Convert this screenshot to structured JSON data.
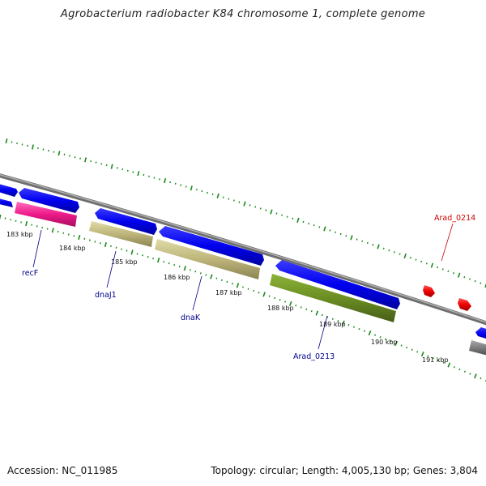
{
  "title": "Agrobacterium radiobacter K84 chromosome 1, complete genome",
  "footer": {
    "accession": "Accession: NC_011985",
    "summary": "Topology: circular; Length: 4,005,130 bp; Genes: 3,804"
  },
  "colors": {
    "backbone": "#8a8a8a",
    "tick": "#1a8a1a",
    "cds_forward": "#0000ee",
    "recF": "#ee1a8a",
    "dnaJ1": "#bdb57a",
    "dnaK": "#bdb57a",
    "Arad_0213": "#6b8e23",
    "Arad_0214": "#ee0000",
    "gray_gene": "#777777",
    "label_blue": "#00008b",
    "label_red": "#cc0000"
  },
  "ticks": [
    {
      "label": "183 kbp"
    },
    {
      "label": "184 kbp"
    },
    {
      "label": "185 kbp"
    },
    {
      "label": "186 kbp"
    },
    {
      "label": "187 kbp"
    },
    {
      "label": "188 kbp"
    },
    {
      "label": "189 kbp"
    },
    {
      "label": "190 kbp"
    },
    {
      "label": "191 kbp"
    }
  ],
  "gene_labels": [
    {
      "name": "recF"
    },
    {
      "name": "dnaJ1"
    },
    {
      "name": "dnaK"
    },
    {
      "name": "Arad_0213"
    },
    {
      "name": "Arad_0214"
    }
  ]
}
